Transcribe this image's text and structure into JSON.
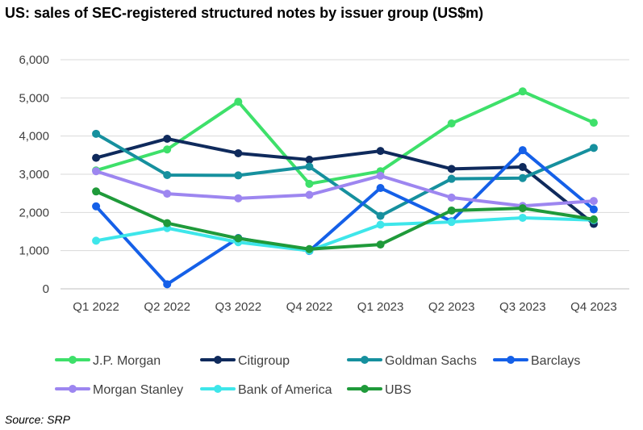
{
  "chart_data": {
    "type": "line",
    "title": "US: sales of SEC-registered structured notes by issuer group (US$m)",
    "source": "Source: SRP",
    "xlabel": "",
    "ylabel": "",
    "ylim": [
      0,
      6000
    ],
    "y_ticks": [
      "0",
      "1,000",
      "2,000",
      "3,000",
      "4,000",
      "5,000",
      "6,000"
    ],
    "grid": true,
    "legend_position": "bottom",
    "categories": [
      "Q1 2022",
      "Q2 2022",
      "Q3 2022",
      "Q4 2022",
      "Q1 2023",
      "Q2 2023",
      "Q3 2023",
      "Q4 2023"
    ],
    "series": [
      {
        "name": "J.P. Morgan",
        "color": "#3ee06a",
        "values": [
          3100,
          3650,
          4900,
          2750,
          3080,
          4330,
          5170,
          4350
        ]
      },
      {
        "name": "Citigroup",
        "color": "#0f2a5c",
        "values": [
          3430,
          3930,
          3550,
          3380,
          3610,
          3140,
          3190,
          1700
        ]
      },
      {
        "name": "Goldman Sachs",
        "color": "#16909e",
        "values": [
          4060,
          2980,
          2970,
          3200,
          1910,
          2880,
          2900,
          3690
        ]
      },
      {
        "name": "Barclays",
        "color": "#1560e8",
        "values": [
          2160,
          120,
          1330,
          990,
          2640,
          1770,
          3630,
          2080
        ]
      },
      {
        "name": "Morgan Stanley",
        "color": "#9d86f0",
        "values": [
          3080,
          2490,
          2370,
          2460,
          2960,
          2390,
          2170,
          2300
        ]
      },
      {
        "name": "Bank of America",
        "color": "#3ee6ea",
        "values": [
          1260,
          1590,
          1220,
          1000,
          1680,
          1750,
          1860,
          1800
        ]
      },
      {
        "name": "UBS",
        "color": "#1f9a3a",
        "values": [
          2550,
          1720,
          1320,
          1040,
          1160,
          2050,
          2110,
          1820
        ]
      }
    ]
  }
}
